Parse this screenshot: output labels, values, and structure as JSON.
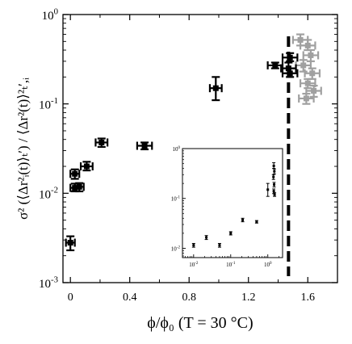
{
  "chart_data": [
    {
      "type": "scatter",
      "role": "main",
      "xlabel": "ϕ/ϕ₀ (T = 30 °C)",
      "ylabel": "σ² (⟨Δr²ᵢ(t)⟩ₜ′) / ⟨Δr²(t)⟩²ₜ′,ᵢ",
      "xlim": [
        -0.05,
        1.8
      ],
      "ylim": [
        0.001,
        1
      ],
      "yscale": "log",
      "x_ticks": [
        {
          "value": 0,
          "label": "0"
        },
        {
          "value": 0.4,
          "label": "0.4"
        },
        {
          "value": 0.8,
          "label": "0.8"
        },
        {
          "value": 1.2,
          "label": "1.2"
        },
        {
          "value": 1.6,
          "label": "1.6"
        }
      ],
      "y_ticks": [
        {
          "value": 0.001,
          "base": "10",
          "exp": "-3"
        },
        {
          "value": 0.01,
          "base": "10",
          "exp": "-2"
        },
        {
          "value": 0.1,
          "base": "10",
          "exp": "-1"
        },
        {
          "value": 1,
          "base": "10",
          "exp": "0"
        }
      ],
      "vline": {
        "x": 1.47,
        "style": "dashed"
      },
      "series": [
        {
          "color": "#000000",
          "points": [
            {
              "x": 0.0,
              "y": 0.0028,
              "xerr": 0.03,
              "yerr_lo": 0.0023,
              "yerr_hi": 0.0033
            },
            {
              "x": 0.03,
              "y": 0.0165,
              "xerr": 0.03,
              "yerr_lo": 0.0145,
              "yerr_hi": 0.0185
            },
            {
              "x": 0.03,
              "y": 0.0115,
              "xerr": 0.03,
              "yerr_lo": 0.0105,
              "yerr_hi": 0.0128
            },
            {
              "x": 0.06,
              "y": 0.0118,
              "xerr": 0.03,
              "yerr_lo": 0.0105,
              "yerr_hi": 0.013
            },
            {
              "x": 0.11,
              "y": 0.02,
              "xerr": 0.04,
              "yerr_lo": 0.018,
              "yerr_hi": 0.0225
            },
            {
              "x": 0.21,
              "y": 0.037,
              "xerr": 0.04,
              "yerr_lo": 0.033,
              "yerr_hi": 0.041
            },
            {
              "x": 0.5,
              "y": 0.034,
              "xerr": 0.05,
              "yerr_lo": 0.031,
              "yerr_hi": 0.037
            },
            {
              "x": 0.98,
              "y": 0.15,
              "xerr": 0.04,
              "yerr_lo": 0.11,
              "yerr_hi": 0.2
            },
            {
              "x": 1.38,
              "y": 0.27,
              "xerr": 0.05,
              "yerr_lo": 0.25,
              "yerr_hi": 0.29
            },
            {
              "x": 1.47,
              "y": 0.25,
              "xerr": 0.05,
              "yerr_lo": 0.22,
              "yerr_hi": 0.29
            },
            {
              "x": 1.48,
              "y": 0.33,
              "xerr": 0.05,
              "yerr_lo": 0.3,
              "yerr_hi": 0.37
            },
            {
              "x": 1.48,
              "y": 0.22,
              "xerr": 0.05,
              "yerr_lo": 0.2,
              "yerr_hi": 0.25
            }
          ]
        },
        {
          "color": "#a0a0a0",
          "points": [
            {
              "x": 1.55,
              "y": 0.52,
              "xerr": 0.05,
              "yerr_lo": 0.45,
              "yerr_hi": 0.6
            },
            {
              "x": 1.6,
              "y": 0.45,
              "xerr": 0.05,
              "yerr_lo": 0.4,
              "yerr_hi": 0.52
            },
            {
              "x": 1.62,
              "y": 0.35,
              "xerr": 0.05,
              "yerr_lo": 0.3,
              "yerr_hi": 0.4
            },
            {
              "x": 1.57,
              "y": 0.27,
              "xerr": 0.05,
              "yerr_lo": 0.23,
              "yerr_hi": 0.31
            },
            {
              "x": 1.63,
              "y": 0.22,
              "xerr": 0.05,
              "yerr_lo": 0.19,
              "yerr_hi": 0.25
            },
            {
              "x": 1.6,
              "y": 0.17,
              "xerr": 0.05,
              "yerr_lo": 0.15,
              "yerr_hi": 0.19
            },
            {
              "x": 1.64,
              "y": 0.14,
              "xerr": 0.05,
              "yerr_lo": 0.12,
              "yerr_hi": 0.16
            },
            {
              "x": 1.59,
              "y": 0.115,
              "xerr": 0.05,
              "yerr_lo": 0.1,
              "yerr_hi": 0.13
            }
          ]
        }
      ]
    },
    {
      "type": "scatter",
      "role": "inset",
      "xscale": "log",
      "yscale": "log",
      "xlim": [
        0.005,
        2.5
      ],
      "ylim": [
        0.0065,
        1.0
      ],
      "x_ticks": [
        {
          "value": 0.01,
          "base": "10",
          "exp": "-2"
        },
        {
          "value": 0.1,
          "base": "10",
          "exp": "-1"
        },
        {
          "value": 1,
          "base": "10",
          "exp": "0"
        }
      ],
      "y_ticks": [
        {
          "value": 0.01,
          "base": "10",
          "exp": "-2"
        },
        {
          "value": 0.1,
          "base": "10",
          "exp": "-1"
        },
        {
          "value": 1,
          "base": "10",
          "exp": "0"
        }
      ],
      "series": [
        {
          "color": "#000000",
          "points": [
            {
              "x": 0.01,
              "y": 0.0115,
              "yerr_lo": 0.0105,
              "yerr_hi": 0.0125
            },
            {
              "x": 0.022,
              "y": 0.0165,
              "yerr_lo": 0.015,
              "yerr_hi": 0.018
            },
            {
              "x": 0.05,
              "y": 0.0115,
              "yerr_lo": 0.0105,
              "yerr_hi": 0.0125
            },
            {
              "x": 0.1,
              "y": 0.02,
              "yerr_lo": 0.0185,
              "yerr_hi": 0.0215
            },
            {
              "x": 0.21,
              "y": 0.037,
              "yerr_lo": 0.034,
              "yerr_hi": 0.04
            },
            {
              "x": 0.5,
              "y": 0.034,
              "yerr_lo": 0.032,
              "yerr_hi": 0.036
            },
            {
              "x": 1.0,
              "y": 0.15,
              "yerr_lo": 0.11,
              "yerr_hi": 0.2
            },
            {
              "x": 1.45,
              "y": 0.45,
              "yerr_lo": 0.4,
              "yerr_hi": 0.52
            },
            {
              "x": 1.5,
              "y": 0.35,
              "yerr_lo": 0.31,
              "yerr_hi": 0.39
            },
            {
              "x": 1.42,
              "y": 0.27,
              "yerr_lo": 0.24,
              "yerr_hi": 0.3
            },
            {
              "x": 1.48,
              "y": 0.19,
              "yerr_lo": 0.17,
              "yerr_hi": 0.21
            },
            {
              "x": 1.45,
              "y": 0.14,
              "yerr_lo": 0.125,
              "yerr_hi": 0.155
            },
            {
              "x": 1.52,
              "y": 0.12,
              "yerr_lo": 0.11,
              "yerr_hi": 0.13
            }
          ]
        }
      ]
    }
  ]
}
